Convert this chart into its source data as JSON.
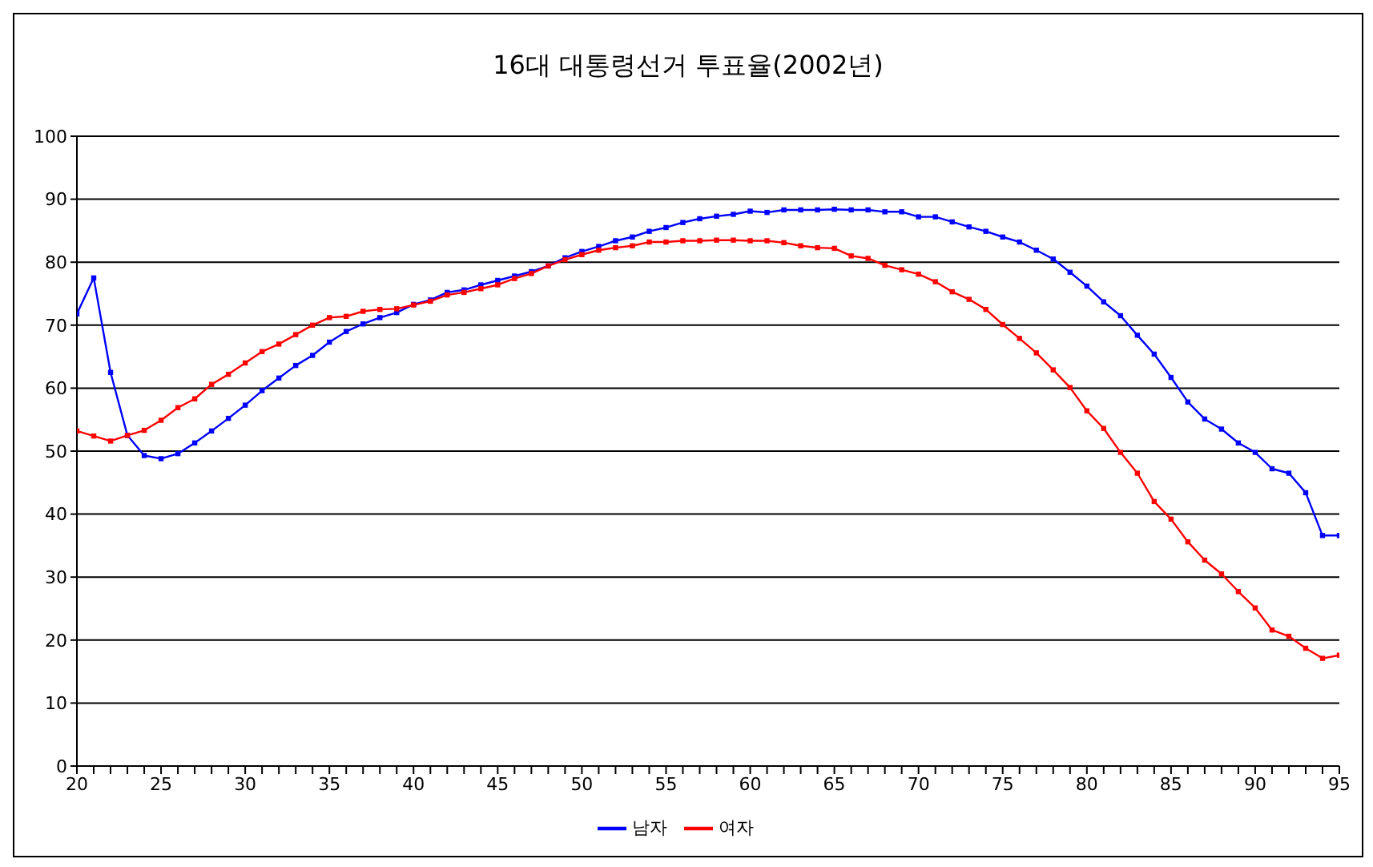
{
  "chart_data": {
    "type": "line",
    "title": "16대 대통령선거 투표율(2002년)",
    "x": [
      20,
      21,
      22,
      23,
      24,
      25,
      26,
      27,
      28,
      29,
      30,
      31,
      32,
      33,
      34,
      35,
      36,
      37,
      38,
      39,
      40,
      41,
      42,
      43,
      44,
      45,
      46,
      47,
      48,
      49,
      50,
      51,
      52,
      53,
      54,
      55,
      56,
      57,
      58,
      59,
      60,
      61,
      62,
      63,
      64,
      65,
      66,
      67,
      68,
      69,
      70,
      71,
      72,
      73,
      74,
      75,
      76,
      77,
      78,
      79,
      80,
      81,
      82,
      83,
      84,
      85,
      86,
      87,
      88,
      89,
      90,
      91,
      92,
      93,
      94,
      95
    ],
    "series": [
      {
        "name": "남자",
        "color": "#0000ff",
        "values": [
          71.8,
          77.5,
          62.5,
          52.5,
          49.3,
          48.8,
          49.6,
          51.3,
          53.2,
          55.2,
          57.3,
          59.6,
          61.6,
          63.6,
          65.2,
          67.3,
          69.0,
          70.2,
          71.2,
          72.0,
          73.3,
          74.0,
          75.2,
          75.6,
          76.4,
          77.1,
          77.8,
          78.5,
          79.4,
          80.7,
          81.7,
          82.5,
          83.4,
          84.0,
          84.9,
          85.5,
          86.3,
          86.9,
          87.3,
          87.6,
          88.1,
          87.9,
          88.3,
          88.3,
          88.3,
          88.4,
          88.3,
          88.3,
          88.0,
          88.0,
          87.2,
          87.2,
          86.4,
          85.6,
          84.9,
          84.0,
          83.2,
          81.9,
          80.5,
          78.4,
          76.2,
          73.7,
          71.5,
          68.4,
          65.4,
          61.7,
          57.8,
          55.1,
          53.5,
          51.3,
          49.8,
          47.2,
          46.5,
          43.4,
          36.6,
          36.6
        ]
      },
      {
        "name": "여자",
        "color": "#ff0000",
        "values": [
          53.2,
          52.4,
          51.6,
          52.5,
          53.3,
          54.9,
          56.9,
          58.3,
          60.6,
          62.2,
          64.0,
          65.8,
          67.0,
          68.5,
          70.0,
          71.2,
          71.4,
          72.2,
          72.5,
          72.6,
          73.2,
          73.8,
          74.8,
          75.2,
          75.8,
          76.4,
          77.4,
          78.2,
          79.4,
          80.4,
          81.2,
          81.9,
          82.3,
          82.6,
          83.2,
          83.2,
          83.4,
          83.4,
          83.5,
          83.5,
          83.4,
          83.4,
          83.1,
          82.6,
          82.3,
          82.2,
          81.0,
          80.6,
          79.5,
          78.8,
          78.1,
          76.9,
          75.3,
          74.1,
          72.5,
          70.1,
          67.9,
          65.6,
          62.9,
          60.1,
          56.4,
          53.6,
          49.8,
          46.5,
          42.0,
          39.2,
          35.6,
          32.7,
          30.5,
          27.7,
          25.1,
          21.6,
          20.6,
          18.7,
          17.1,
          17.6
        ]
      }
    ],
    "xlim": [
      20,
      95
    ],
    "xticks": [
      20,
      {
        "value": 21,
        "label": null
      },
      {
        "value": 22,
        "label": null
      },
      {
        "value": 23,
        "label": null
      },
      {
        "value": 24,
        "label": null
      },
      25,
      {
        "value": 26,
        "label": null
      },
      {
        "value": 27,
        "label": null
      },
      {
        "value": 28,
        "label": null
      },
      {
        "value": 29,
        "label": null
      },
      30,
      {
        "value": 31,
        "label": null
      },
      {
        "value": 32,
        "label": null
      },
      {
        "value": 33,
        "label": null
      },
      {
        "value": 34,
        "label": null
      },
      35,
      {
        "value": 36,
        "label": null
      },
      {
        "value": 37,
        "label": null
      },
      {
        "value": 38,
        "label": null
      },
      {
        "value": 39,
        "label": null
      },
      40,
      {
        "value": 41,
        "label": null
      },
      {
        "value": 42,
        "label": null
      },
      {
        "value": 43,
        "label": null
      },
      {
        "value": 44,
        "label": null
      },
      45,
      {
        "value": 46,
        "label": null
      },
      {
        "value": 47,
        "label": null
      },
      {
        "value": 48,
        "label": null
      },
      {
        "value": 49,
        "label": null
      },
      50,
      {
        "value": 51,
        "label": null
      },
      {
        "value": 52,
        "label": null
      },
      {
        "value": 53,
        "label": null
      },
      {
        "value": 54,
        "label": null
      },
      55,
      {
        "value": 56,
        "label": null
      },
      {
        "value": 57,
        "label": null
      },
      {
        "value": 58,
        "label": null
      },
      {
        "value": 59,
        "label": null
      },
      60,
      {
        "value": 61,
        "label": null
      },
      {
        "value": 62,
        "label": null
      },
      {
        "value": 63,
        "label": null
      },
      {
        "value": 64,
        "label": null
      },
      65,
      {
        "value": 66,
        "label": null
      },
      {
        "value": 67,
        "label": null
      },
      {
        "value": 68,
        "label": null
      },
      {
        "value": 69,
        "label": null
      },
      70,
      {
        "value": 71,
        "label": null
      },
      {
        "value": 72,
        "label": null
      },
      {
        "value": 73,
        "label": null
      },
      {
        "value": 74,
        "label": null
      },
      75,
      {
        "value": 76,
        "label": null
      },
      {
        "value": 77,
        "label": null
      },
      {
        "value": 78,
        "label": null
      },
      {
        "value": 79,
        "label": null
      },
      80,
      {
        "value": 81,
        "label": null
      },
      {
        "value": 82,
        "label": null
      },
      {
        "value": 83,
        "label": null
      },
      {
        "value": 84,
        "label": null
      },
      85,
      {
        "value": 86,
        "label": null
      },
      {
        "value": 87,
        "label": null
      },
      {
        "value": 88,
        "label": null
      },
      {
        "value": 89,
        "label": null
      },
      90,
      {
        "value": 91,
        "label": null
      },
      {
        "value": 92,
        "label": null
      },
      {
        "value": 93,
        "label": null
      },
      {
        "value": 94,
        "label": null
      },
      95
    ],
    "ylim": [
      0,
      100
    ],
    "yticks": [
      0,
      10,
      20,
      30,
      40,
      50,
      60,
      70,
      80,
      90,
      100
    ],
    "grid": "y",
    "legend": "bottom",
    "marker": "square",
    "line_style": "solid"
  }
}
